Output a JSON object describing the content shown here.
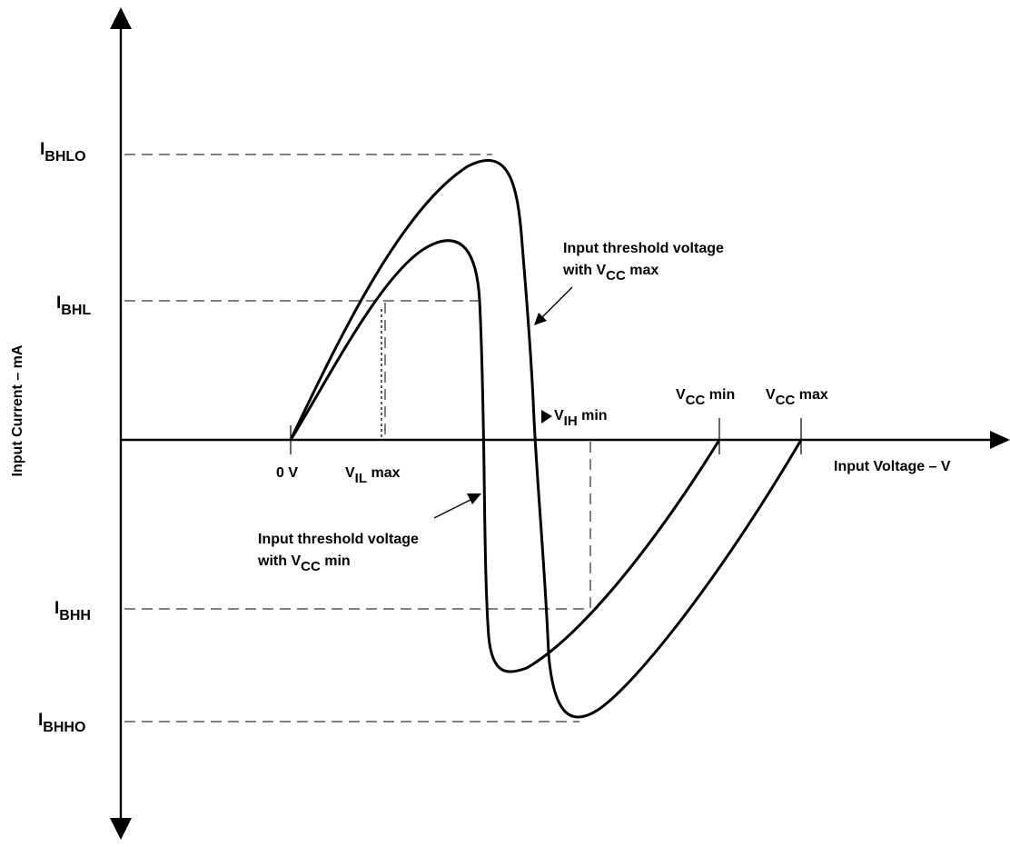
{
  "axes": {
    "y_label": "Input Current – mA",
    "x_label": "Input Voltage – V"
  },
  "current_levels": {
    "ibhlo": {
      "main": "I",
      "sub": "BHLO"
    },
    "ibhl": {
      "main": "I",
      "sub": "BHL"
    },
    "ibhh": {
      "main": "I",
      "sub": "BHH"
    },
    "ibhho": {
      "main": "I",
      "sub": "BHHO"
    }
  },
  "voltage_marks": {
    "zero": "0 V",
    "vil_max": {
      "main": "V",
      "sub": "IL",
      "suffix": " max"
    },
    "vih_min": {
      "main": "V",
      "sub": "IH",
      "suffix": " min"
    },
    "vcc_min": {
      "main": "V",
      "sub": "CC",
      "suffix": " min"
    },
    "vcc_max": {
      "main": "V",
      "sub": "CC",
      "suffix": " max"
    }
  },
  "annotations": {
    "vcc_max_curve": {
      "line1": "Input threshold voltage",
      "line2_prefix": "with V",
      "line2_sub": "CC",
      "line2_suffix": " max"
    },
    "vcc_min_curve": {
      "line1": "Input threshold voltage",
      "line2_prefix": "with V",
      "line2_sub": "CC",
      "line2_suffix": " min"
    }
  }
}
